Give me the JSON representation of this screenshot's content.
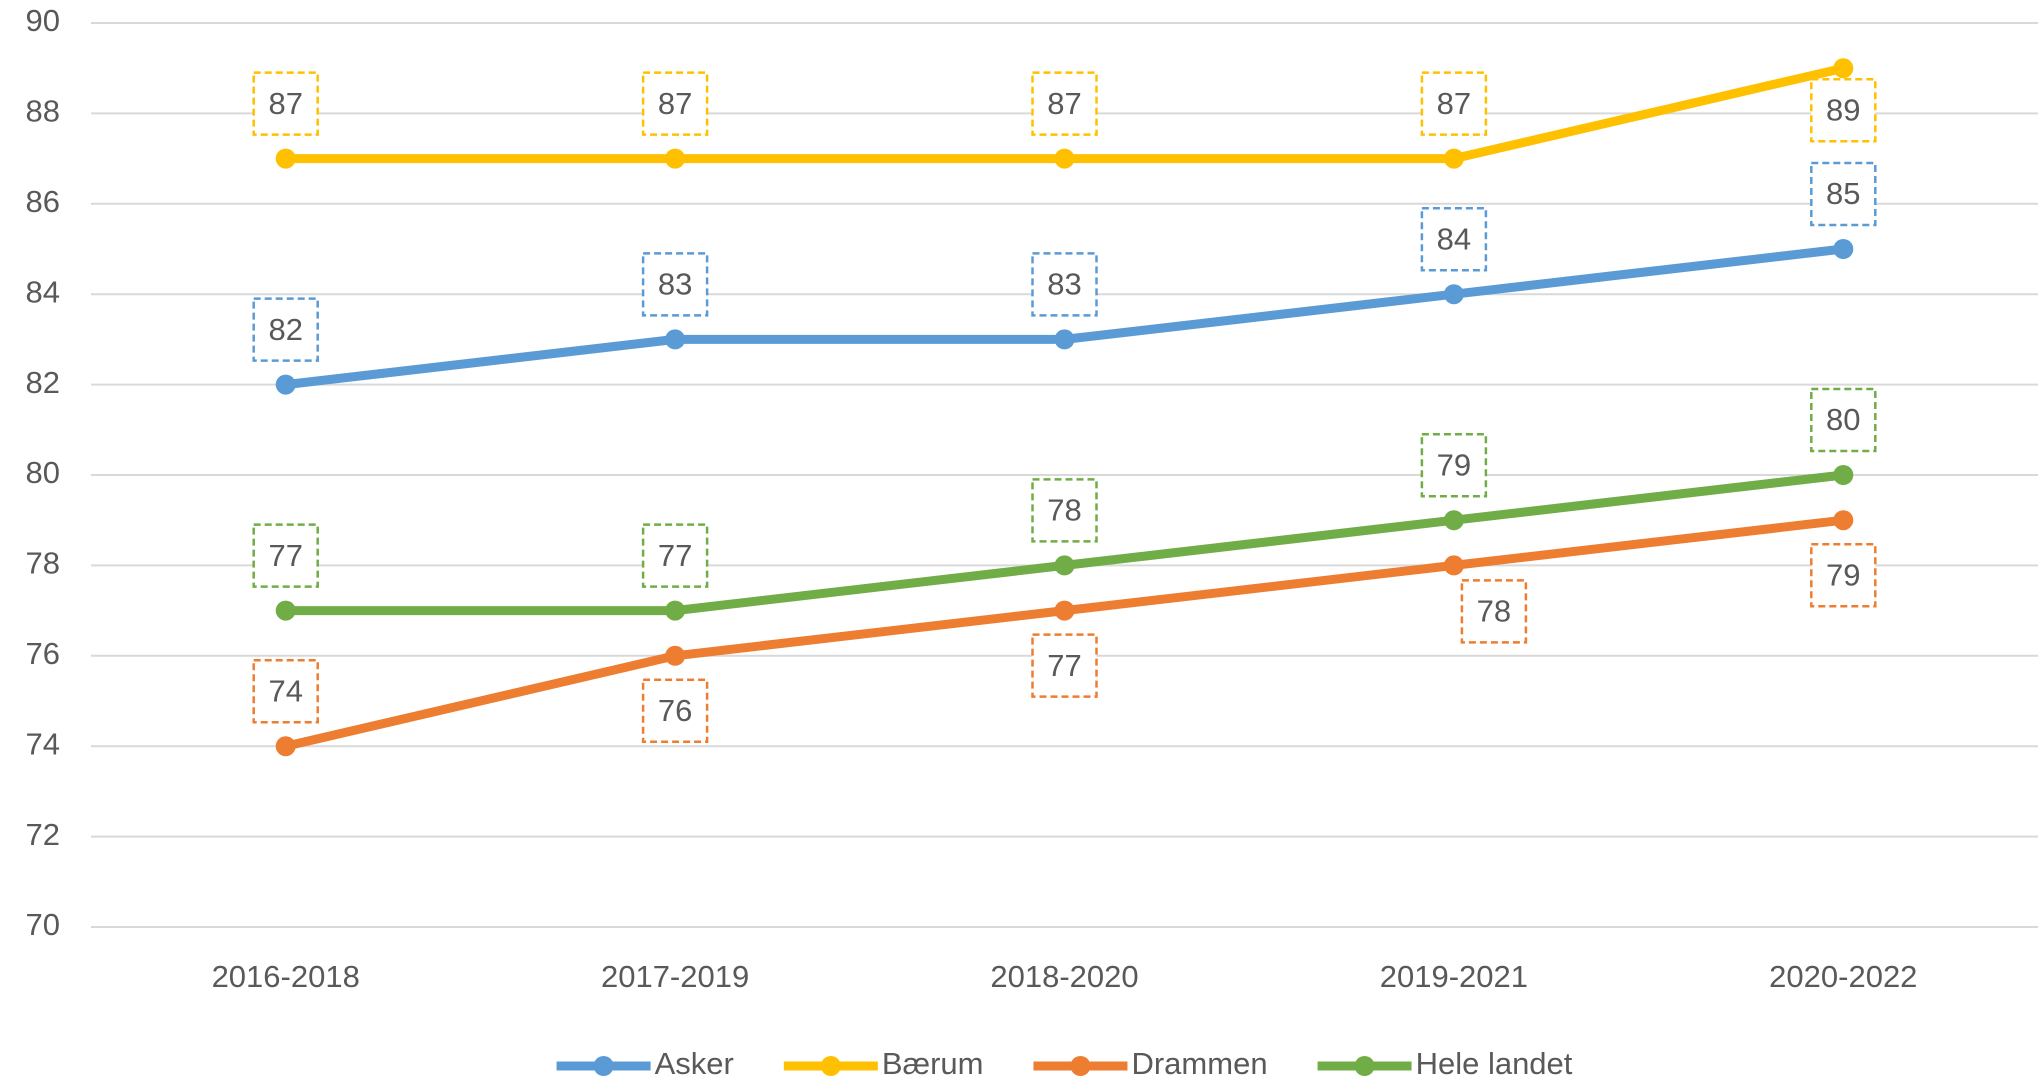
{
  "chart_data": {
    "type": "line",
    "categories": [
      "2016-2018",
      "2017-2019",
      "2018-2020",
      "2019-2021",
      "2020-2022"
    ],
    "series": [
      {
        "name": "Asker",
        "color": "#5b9bd5",
        "values": [
          82,
          83,
          83,
          84,
          85
        ]
      },
      {
        "name": "Bærum",
        "color": "#ffc000",
        "values": [
          87,
          87,
          87,
          87,
          89
        ]
      },
      {
        "name": "Drammen",
        "color": "#ed7d31",
        "values": [
          74,
          76,
          77,
          78,
          79
        ]
      },
      {
        "name": "Hele landet",
        "color": "#70ad47",
        "values": [
          77,
          77,
          78,
          79,
          80
        ]
      }
    ],
    "ylim": [
      70,
      90
    ],
    "yticks": [
      70,
      72,
      74,
      76,
      78,
      80,
      82,
      84,
      86,
      88,
      90
    ],
    "grid": true,
    "legend": "bottom"
  }
}
